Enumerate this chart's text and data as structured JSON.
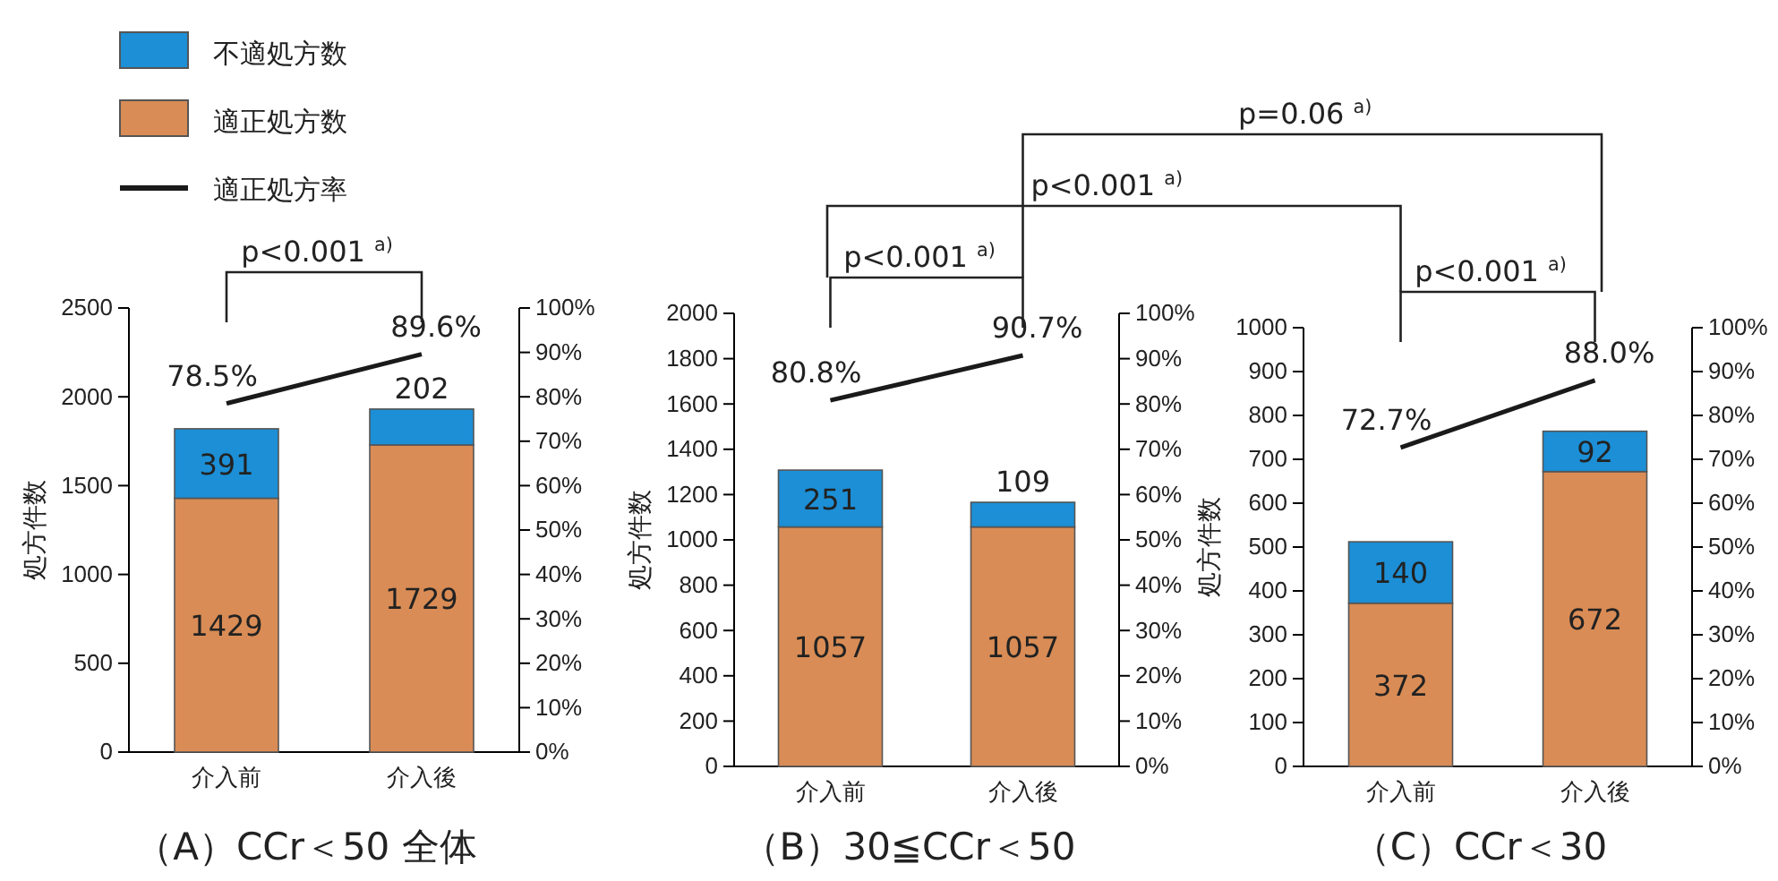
{
  "chart_data": [
    {
      "type": "bar",
      "title": "（A）CCr＜50 全体",
      "ylabel": "処方件数",
      "categories": [
        "介入前",
        "介入後"
      ],
      "stacked": true,
      "legend": "top left",
      "ylim": [
        0,
        2500
      ],
      "yticks": [
        0,
        500,
        1000,
        1500,
        2000,
        2500
      ],
      "y2lim": [
        0,
        100
      ],
      "y2ticks": [
        {
          "value": 0,
          "label": "0%"
        },
        {
          "value": 10,
          "label": "10%"
        },
        {
          "value": 20,
          "label": "20%"
        },
        {
          "value": 30,
          "label": "30%"
        },
        {
          "value": 40,
          "label": "40%"
        },
        {
          "value": 50,
          "label": "50%"
        },
        {
          "value": 60,
          "label": "60%"
        },
        {
          "value": 70,
          "label": "70%"
        },
        {
          "value": 80,
          "label": "80%"
        },
        {
          "value": 90,
          "label": "90%"
        },
        {
          "value": 100,
          "label": "100%"
        }
      ],
      "marker": "none",
      "annotations": [
        "p<0.001 $^{a)}$"
      ],
      "series": [
        {
          "name": "適正処方数",
          "color": "#d98c55",
          "values": [
            1429,
            1729
          ],
          "value_labels": [
            "1429",
            "1729"
          ]
        },
        {
          "name": "不適処方数",
          "color": "#1c8fd6",
          "values": [
            391,
            202
          ],
          "value_labels": [
            "391",
            "202"
          ]
        },
        {
          "name": "適正処方率",
          "type": "line",
          "axis": "y2",
          "color": "#1a1a1a",
          "values": [
            78.5,
            89.6
          ],
          "value_labels": [
            "78.5%",
            "89.6%"
          ]
        }
      ]
    },
    {
      "type": "bar",
      "title": "（B）30≦CCr＜50",
      "ylabel": "処方件数",
      "categories": [
        "介入前",
        "介入後"
      ],
      "stacked": true,
      "ylim": [
        0,
        2000
      ],
      "yticks": [
        0,
        200,
        400,
        600,
        800,
        1000,
        1200,
        1400,
        1600,
        1800,
        2000
      ],
      "y2lim": [
        0,
        100
      ],
      "y2ticks": [
        {
          "value": 0,
          "label": "0%"
        },
        {
          "value": 10,
          "label": "10%"
        },
        {
          "value": 20,
          "label": "20%"
        },
        {
          "value": 30,
          "label": "30%"
        },
        {
          "value": 40,
          "label": "40%"
        },
        {
          "value": 50,
          "label": "50%"
        },
        {
          "value": 60,
          "label": "60%"
        },
        {
          "value": 70,
          "label": "70%"
        },
        {
          "value": 80,
          "label": "80%"
        },
        {
          "value": 90,
          "label": "90%"
        },
        {
          "value": 100,
          "label": "100%"
        }
      ],
      "marker": "none",
      "annotations": [
        "p<0.001 $^{a)}$",
        "p<0.001 $^{a)}$",
        "p=0.06 $^{a)}$"
      ],
      "series": [
        {
          "color": "#d98c55",
          "values": [
            1057,
            1057
          ],
          "value_labels": [
            "1057",
            "1057"
          ]
        },
        {
          "color": "#1c8fd6",
          "values": [
            251,
            109
          ],
          "value_labels": [
            "251",
            "109"
          ]
        },
        {
          "type": "line",
          "axis": "y2",
          "color": "#1a1a1a",
          "values": [
            80.8,
            90.7
          ],
          "value_labels": [
            "80.8%",
            "90.7%"
          ]
        }
      ]
    },
    {
      "type": "bar",
      "title": "（C）CCr＜30",
      "ylabel": "処方件数",
      "categories": [
        "介入前",
        "介入後"
      ],
      "stacked": true,
      "ylim": [
        0,
        1000
      ],
      "yticks": [
        0,
        100,
        200,
        300,
        400,
        500,
        600,
        700,
        800,
        900,
        1000
      ],
      "y2lim": [
        0,
        100
      ],
      "y2ticks": [
        {
          "value": 0,
          "label": "0%"
        },
        {
          "value": 10,
          "label": "10%"
        },
        {
          "value": 20,
          "label": "20%"
        },
        {
          "value": 30,
          "label": "30%"
        },
        {
          "value": 40,
          "label": "40%"
        },
        {
          "value": 50,
          "label": "50%"
        },
        {
          "value": 60,
          "label": "60%"
        },
        {
          "value": 70,
          "label": "70%"
        },
        {
          "value": 80,
          "label": "80%"
        },
        {
          "value": 90,
          "label": "90%"
        },
        {
          "value": 100,
          "label": "100%"
        }
      ],
      "marker": "none",
      "annotations": [
        "p<0.001 $^{a)}$"
      ],
      "series": [
        {
          "color": "#d98c55",
          "values": [
            372,
            672
          ],
          "value_labels": [
            "372",
            "672"
          ]
        },
        {
          "color": "#1c8fd6",
          "values": [
            140,
            92
          ],
          "value_labels": [
            "140",
            "92"
          ]
        },
        {
          "type": "line",
          "axis": "y2",
          "color": "#1a1a1a",
          "values": [
            72.7,
            88.0
          ],
          "value_labels": [
            "72.7%",
            "88.0%"
          ]
        }
      ]
    }
  ]
}
